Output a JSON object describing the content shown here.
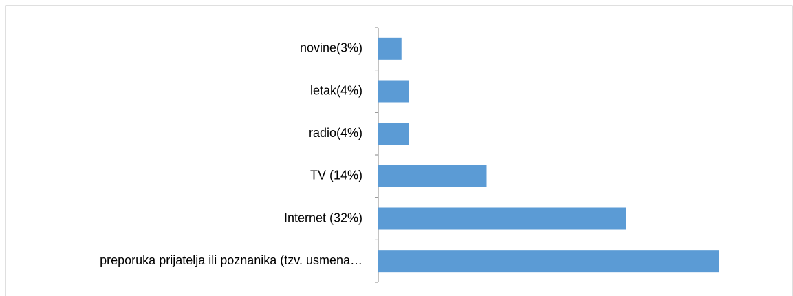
{
  "chart_data": {
    "type": "bar",
    "orientation": "horizontal",
    "categories": [
      "novine(3%)",
      "letak(4%)",
      "radio(4%)",
      "TV (14%)",
      "Internet (32%)",
      "preporuka prijatelja ili poznanika (tzv. usmena…"
    ],
    "values": [
      3,
      4,
      4,
      14,
      32,
      44
    ],
    "color": "#5b9bd5"
  }
}
